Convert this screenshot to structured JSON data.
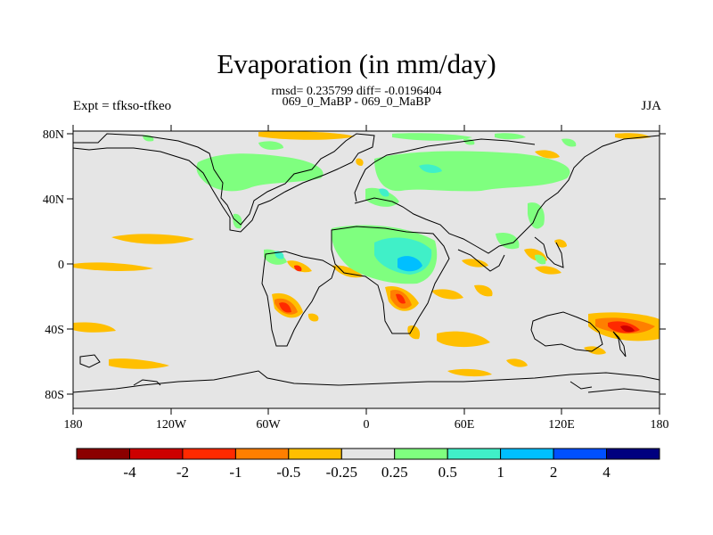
{
  "title": "Evaporation (in mm/day)",
  "stats": "rmsd= 0.235799 diff= -0.0196404",
  "cases": "069_0_MaBP - 069_0_MaBP",
  "left_label": "Expt = tfkso-tfkeo",
  "right_label": "JJA",
  "colors": {
    "background_fill": "#e5e5e5",
    "coastline": "#000000"
  },
  "chart_data": {
    "type": "heatmap",
    "x_ticks": [
      "180",
      "120W",
      "60W",
      "0",
      "60E",
      "120E",
      "180"
    ],
    "y_ticks": [
      "80N",
      "40N",
      "0",
      "40S",
      "80S"
    ],
    "colorbar": {
      "colors": [
        "#8b0000",
        "#cd0000",
        "#ff2a00",
        "#ff7f00",
        "#ffbf00",
        "#e5e5e5",
        "#7fff7f",
        "#40f0c8",
        "#00bfff",
        "#0050ff",
        "#00007f"
      ],
      "labels": [
        "-4",
        "-2",
        "-1",
        "-0.5",
        "-0.25",
        "0.25",
        "0.5",
        "1",
        "2",
        "4"
      ]
    }
  }
}
